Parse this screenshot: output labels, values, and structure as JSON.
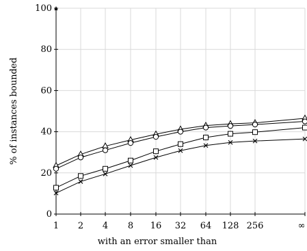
{
  "chart_data": {
    "type": "line",
    "x": [
      "1",
      "2",
      "4",
      "8",
      "16",
      "32",
      "64",
      "128",
      "256",
      "∞"
    ],
    "series": [
      {
        "marker": "triangle",
        "values": [
          23.5,
          29,
          33,
          36,
          38.8,
          41.2,
          43,
          43.8,
          44.3,
          46.5
        ]
      },
      {
        "marker": "circle",
        "values": [
          22,
          27.5,
          31,
          34.5,
          37.5,
          40,
          42,
          42.8,
          43.5,
          45
        ]
      },
      {
        "marker": "square",
        "values": [
          12.8,
          18.5,
          22,
          26,
          30.5,
          34,
          37.2,
          39,
          39.8,
          42
        ]
      },
      {
        "marker": "cross",
        "values": [
          10.2,
          15.8,
          19.5,
          23.6,
          27.5,
          30.8,
          33.3,
          34.8,
          35.5,
          36.5
        ]
      }
    ],
    "ylim": [
      0,
      100
    ],
    "yticks": [
      "0",
      "20",
      "40",
      "60",
      "80",
      "100"
    ],
    "xlabel": "with an error smaller than",
    "ylabel": "% of instances bounded",
    "grid": true,
    "legend": "none"
  }
}
